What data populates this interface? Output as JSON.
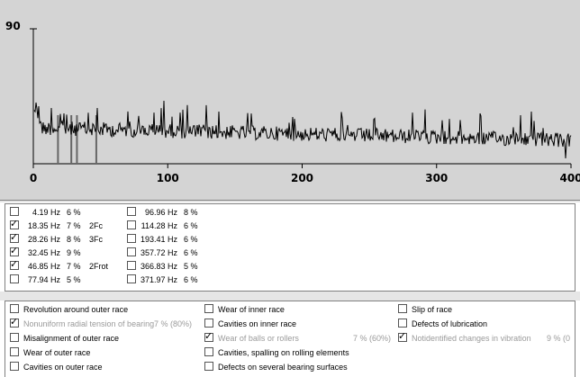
{
  "chart_data": {
    "type": "line",
    "y_top_label": "90",
    "x_ticks": [
      "0",
      "100",
      "200",
      "300",
      "400"
    ],
    "xlim": [
      0,
      400
    ],
    "ylim": [
      0,
      90
    ],
    "markers": [
      18.35,
      28.26,
      32.45,
      46.85
    ]
  },
  "frequencies": [
    {
      "hz": "4.19 Hz",
      "pct": "6 %",
      "note": "",
      "checked": false
    },
    {
      "hz": "18.35 Hz",
      "pct": "7 %",
      "note": "2Fc",
      "checked": true
    },
    {
      "hz": "28.26 Hz",
      "pct": "8 %",
      "note": "3Fc",
      "checked": true
    },
    {
      "hz": "32.45 Hz",
      "pct": "9 %",
      "note": "",
      "checked": true
    },
    {
      "hz": "46.85 Hz",
      "pct": "7 %",
      "note": "2Frot",
      "checked": true
    },
    {
      "hz": "77.94 Hz",
      "pct": "5 %",
      "note": "",
      "checked": false
    },
    {
      "hz": "96.96 Hz",
      "pct": "8 %",
      "note": "",
      "checked": false
    },
    {
      "hz": "114.28 Hz",
      "pct": "6 %",
      "note": "",
      "checked": false
    },
    {
      "hz": "193.41 Hz",
      "pct": "6 %",
      "note": "",
      "checked": false
    },
    {
      "hz": "357.72 Hz",
      "pct": "6 %",
      "note": "",
      "checked": false
    },
    {
      "hz": "366.83 Hz",
      "pct": "5 %",
      "note": "",
      "checked": false
    },
    {
      "hz": "371.97 Hz",
      "pct": "6 %",
      "note": "",
      "checked": false
    }
  ],
  "defects": [
    [
      {
        "label": "Revolution around outer race",
        "checked": false,
        "dim": false,
        "extra": ""
      },
      {
        "label": "Nonuniform radial tension of bearing",
        "checked": true,
        "dim": true,
        "extra": "7 %  (80%)"
      },
      {
        "label": "Misalignment of outer race",
        "checked": false,
        "dim": false,
        "extra": ""
      },
      {
        "label": "Wear of outer race",
        "checked": false,
        "dim": false,
        "extra": ""
      },
      {
        "label": "Cavities on outer race",
        "checked": false,
        "dim": false,
        "extra": ""
      }
    ],
    [
      {
        "label": "Wear of inner race",
        "checked": false,
        "dim": false,
        "extra": ""
      },
      {
        "label": "Cavities on inner race",
        "checked": false,
        "dim": false,
        "extra": ""
      },
      {
        "label": "Wear of balls or rollers",
        "checked": true,
        "dim": true,
        "extra": "7 %  (60%)"
      },
      {
        "label": "Cavities, spalling on rolling elements",
        "checked": false,
        "dim": false,
        "extra": ""
      },
      {
        "label": "Defects on several bearing surfaces",
        "checked": false,
        "dim": false,
        "extra": ""
      }
    ],
    [
      {
        "label": "Slip of race",
        "checked": false,
        "dim": false,
        "extra": ""
      },
      {
        "label": "Defects  of lubrication",
        "checked": false,
        "dim": false,
        "extra": ""
      },
      {
        "label": "Notidentified changes in vibration",
        "checked": true,
        "dim": true,
        "extra": "9 %  (0"
      }
    ]
  ],
  "check_mark": "✓"
}
